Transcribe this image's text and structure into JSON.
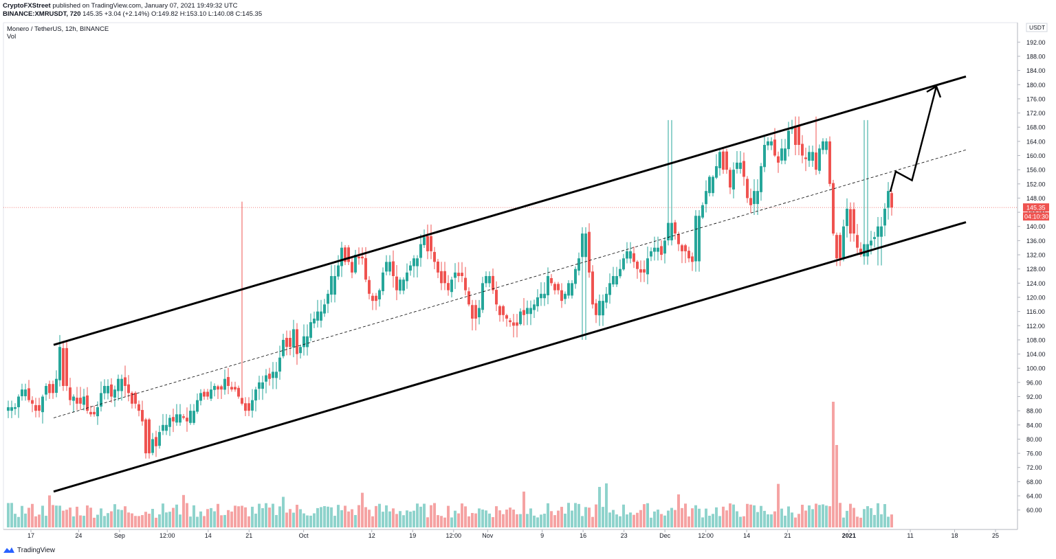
{
  "header": {
    "publisher": "CryptoFXStreet",
    "published_text": "published on TradingView.com, January 07, 2021 19:49:32 UTC",
    "symbol_line": "BINANCE:XMRUSDT, 720",
    "last": "145.35",
    "change": "+3.04 (+2.14%)",
    "open": "O:149.82",
    "high": "H:153.10",
    "low": "L:140.08",
    "close": "C:145.35"
  },
  "pane": {
    "title": "Monero / TetherUS, 12h, BINANCE",
    "volume_label": "Vol",
    "currency": "USDT",
    "price_badge": "145.35",
    "countdown_badge": "04:10:30"
  },
  "brand": {
    "name": "TradingView",
    "icon": "tradingview-logo-icon"
  },
  "colors": {
    "up": "#26a69a",
    "down": "#ef5350",
    "vol_up": "#8fd3cc",
    "vol_down": "#f5a3a3",
    "line": "#000000"
  },
  "chart_data": {
    "type": "candlestick",
    "title": "Monero / TetherUS, 12h, BINANCE",
    "ylim": [
      58,
      194
    ],
    "y_ticks": [
      "192.00",
      "188.00",
      "184.00",
      "180.00",
      "176.00",
      "172.00",
      "168.00",
      "164.00",
      "160.00",
      "156.00",
      "152.00",
      "148.00",
      "144.00",
      "140.00",
      "136.00",
      "132.00",
      "128.00",
      "124.00",
      "120.00",
      "116.00",
      "112.00",
      "108.00",
      "104.00",
      "100.00",
      "96.00",
      "92.00",
      "88.00",
      "84.00",
      "80.00",
      "76.00",
      "72.00",
      "68.00",
      "64.00",
      "60.00"
    ],
    "x_ticks": [
      "17",
      "24",
      "Sep",
      "12:00",
      "14",
      "21",
      "Oct",
      "12",
      "19",
      "12:00",
      "Nov",
      "9",
      "16",
      "23",
      "Dec",
      "12:00",
      "14",
      "21",
      "2021",
      "11",
      "18",
      "25"
    ],
    "x_tick_bars": [
      6,
      20,
      32,
      46,
      58,
      70,
      86,
      106,
      118,
      130,
      140,
      156,
      168,
      180,
      192,
      204,
      216,
      228,
      246,
      264,
      277,
      289
    ],
    "last_price": 145.35,
    "path_closes": [
      89,
      89,
      92,
      94,
      91,
      90,
      88,
      92,
      95,
      93,
      97,
      106,
      95,
      91,
      92,
      90,
      92,
      88,
      87,
      89,
      93,
      95,
      92,
      94,
      97,
      95,
      93,
      90,
      88,
      85,
      76,
      80,
      78,
      82,
      84,
      86,
      85,
      87,
      86,
      85,
      88,
      91,
      93,
      92,
      94,
      95,
      94,
      97,
      95,
      94,
      92,
      90,
      88,
      91,
      94,
      96,
      98,
      97,
      99,
      103,
      108,
      106,
      111,
      104,
      106,
      109,
      113,
      114,
      116,
      118,
      121,
      126,
      129,
      134,
      130,
      127,
      132,
      131,
      125,
      121,
      119,
      122,
      127,
      130,
      126,
      122,
      125,
      127,
      129,
      131,
      135,
      137,
      133,
      130,
      127,
      124,
      122,
      125,
      127,
      126,
      122,
      118,
      114,
      117,
      124,
      126,
      122,
      118,
      115,
      114,
      113,
      112,
      116,
      115,
      117,
      118,
      120,
      121,
      126,
      124,
      122,
      119,
      121,
      124,
      128,
      131,
      138,
      127,
      118,
      115,
      119,
      121,
      124,
      126,
      128,
      131,
      133,
      130,
      128,
      127,
      131,
      133,
      134,
      132,
      136,
      141,
      138,
      135,
      133,
      131,
      130,
      143,
      146,
      150,
      154,
      157,
      161,
      156,
      151,
      156,
      158,
      154,
      148,
      146,
      150,
      157,
      163,
      164,
      160,
      158,
      162,
      167,
      168,
      163,
      160,
      159,
      161,
      156,
      162,
      164,
      152,
      138,
      131,
      140,
      145,
      138,
      134,
      132,
      135,
      136,
      137,
      140,
      145,
      150,
      145.35
    ],
    "trendlines": [
      {
        "name": "channel-upper",
        "from": {
          "bar": 11,
          "price": 106.6
        },
        "to": {
          "bar": 292,
          "price": 182.3
        }
      },
      {
        "name": "channel-lower",
        "from": {
          "bar": 11,
          "price": 65.2
        },
        "to": {
          "bar": 292,
          "price": 141.2
        }
      },
      {
        "name": "channel-mid-dashed",
        "from": {
          "bar": 11,
          "price": 86.0
        },
        "to": {
          "bar": 292,
          "price": 161.6
        }
      }
    ],
    "projection_path": [
      {
        "bar": 263,
        "price": 149.8
      },
      {
        "bar": 265,
        "price": 155.5
      },
      {
        "bar": 271,
        "price": 153.0
      },
      {
        "bar": 280,
        "price": 179.5
      }
    ]
  }
}
